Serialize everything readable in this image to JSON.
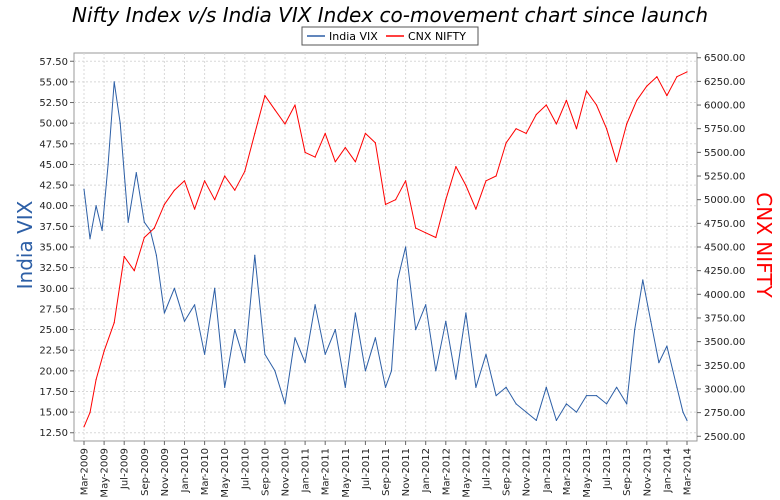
{
  "chart_data": {
    "type": "line",
    "title": "Nifty Index v/s India VIX Index co-movement chart since launch",
    "legend": {
      "placement": "top-center",
      "entries": [
        "India VIX",
        "CNX NIFTY"
      ]
    },
    "colors": {
      "India VIX": "#2d5fa6",
      "CNX NIFTY": "#ff0000"
    },
    "grid": true,
    "x_ticks": [
      "Mar-2009",
      "May-2009",
      "Jul-2009",
      "Sep-2009",
      "Nov-2009",
      "Jan-2010",
      "Mar-2010",
      "May-2010",
      "Jul-2010",
      "Sep-2010",
      "Nov-2010",
      "Jan-2011",
      "Mar-2011",
      "May-2011",
      "Jul-2011",
      "Sep-2011",
      "Nov-2011",
      "Jan-2012",
      "Mar-2012",
      "May-2012",
      "Jul-2012",
      "Sep-2012",
      "Nov-2012",
      "Jan-2013",
      "Mar-2013",
      "May-2013",
      "Jul-2013",
      "Sep-2013",
      "Nov-2013",
      "Jan-2014",
      "Mar-2014"
    ],
    "left_axis": {
      "label": "India VIX",
      "ylim": [
        11.5,
        58.5
      ],
      "ticks": [
        "12.50",
        "15.00",
        "17.50",
        "20.00",
        "22.50",
        "25.00",
        "27.50",
        "30.00",
        "32.50",
        "35.00",
        "37.50",
        "40.00",
        "42.50",
        "45.00",
        "47.50",
        "50.00",
        "52.50",
        "55.00",
        "57.50"
      ]
    },
    "right_axis": {
      "label": "CNX NIFTY",
      "ylim": [
        2450,
        6550
      ],
      "ticks": [
        "2500.00",
        "2750.00",
        "3000.00",
        "3250.00",
        "3500.00",
        "3750.00",
        "4000.00",
        "4250.00",
        "4500.00",
        "4750.00",
        "5000.00",
        "5250.00",
        "5500.00",
        "5750.00",
        "6000.00",
        "6250.00",
        "6500.00"
      ]
    },
    "series": [
      {
        "name": "India VIX",
        "axis": "left",
        "x": [
          0,
          0.3,
          0.6,
          0.9,
          1.2,
          1.5,
          1.8,
          2.2,
          2.6,
          3.0,
          3.3,
          3.6,
          4.0,
          4.5,
          5.0,
          5.5,
          6.0,
          6.5,
          7.0,
          7.5,
          8.0,
          8.5,
          9.0,
          9.5,
          10.0,
          10.5,
          11.0,
          11.5,
          12.0,
          12.5,
          13.0,
          13.5,
          14.0,
          14.5,
          15.0,
          15.3,
          15.6,
          16.0,
          16.5,
          17.0,
          17.5,
          18.0,
          18.5,
          19.0,
          19.5,
          20.0,
          20.5,
          21.0,
          21.5,
          22.0,
          22.5,
          23.0,
          23.5,
          24.0,
          24.5,
          25.0,
          25.5,
          26.0,
          26.5,
          27.0,
          27.4,
          27.8,
          28.2,
          28.6,
          29.0,
          29.5,
          29.8,
          30.0
        ],
        "values": [
          42,
          36,
          40,
          37,
          45,
          55,
          50,
          38,
          44,
          38,
          37,
          34,
          27,
          30,
          26,
          28,
          22,
          30,
          18,
          25,
          21,
          34,
          22,
          20,
          16,
          24,
          21,
          28,
          22,
          25,
          18,
          27,
          20,
          24,
          18,
          20,
          31,
          35,
          25,
          28,
          20,
          26,
          19,
          27,
          18,
          22,
          17,
          18,
          16,
          15,
          14,
          18,
          14,
          16,
          15,
          17,
          17,
          16,
          18,
          16,
          25,
          31,
          26,
          21,
          23,
          18,
          15,
          14
        ]
      },
      {
        "name": "CNX NIFTY",
        "axis": "right",
        "x": [
          0,
          0.3,
          0.6,
          1.0,
          1.5,
          2.0,
          2.5,
          3.0,
          3.5,
          4.0,
          4.5,
          5.0,
          5.5,
          6.0,
          6.5,
          7.0,
          7.5,
          8.0,
          8.5,
          9.0,
          9.5,
          10.0,
          10.5,
          11.0,
          11.5,
          12.0,
          12.5,
          13.0,
          13.5,
          14.0,
          14.5,
          15.0,
          15.5,
          16.0,
          16.5,
          17.0,
          17.5,
          18.0,
          18.5,
          19.0,
          19.5,
          20.0,
          20.5,
          21.0,
          21.5,
          22.0,
          22.5,
          23.0,
          23.5,
          24.0,
          24.5,
          25.0,
          25.5,
          26.0,
          26.5,
          27.0,
          27.5,
          28.0,
          28.5,
          29.0,
          29.5,
          30.0
        ],
        "values": [
          2600,
          2750,
          3100,
          3400,
          3700,
          4400,
          4250,
          4600,
          4700,
          4950,
          5100,
          5200,
          4900,
          5200,
          5000,
          5250,
          5100,
          5300,
          5700,
          6100,
          5950,
          5800,
          6000,
          5500,
          5450,
          5700,
          5400,
          5550,
          5400,
          5700,
          5600,
          4950,
          5000,
          5200,
          4700,
          4650,
          4600,
          5000,
          5350,
          5150,
          4900,
          5200,
          5250,
          5600,
          5750,
          5700,
          5900,
          6000,
          5800,
          6050,
          5750,
          6150,
          6000,
          5750,
          5400,
          5800,
          6050,
          6200,
          6300,
          6100,
          6300,
          6350
        ]
      }
    ]
  }
}
